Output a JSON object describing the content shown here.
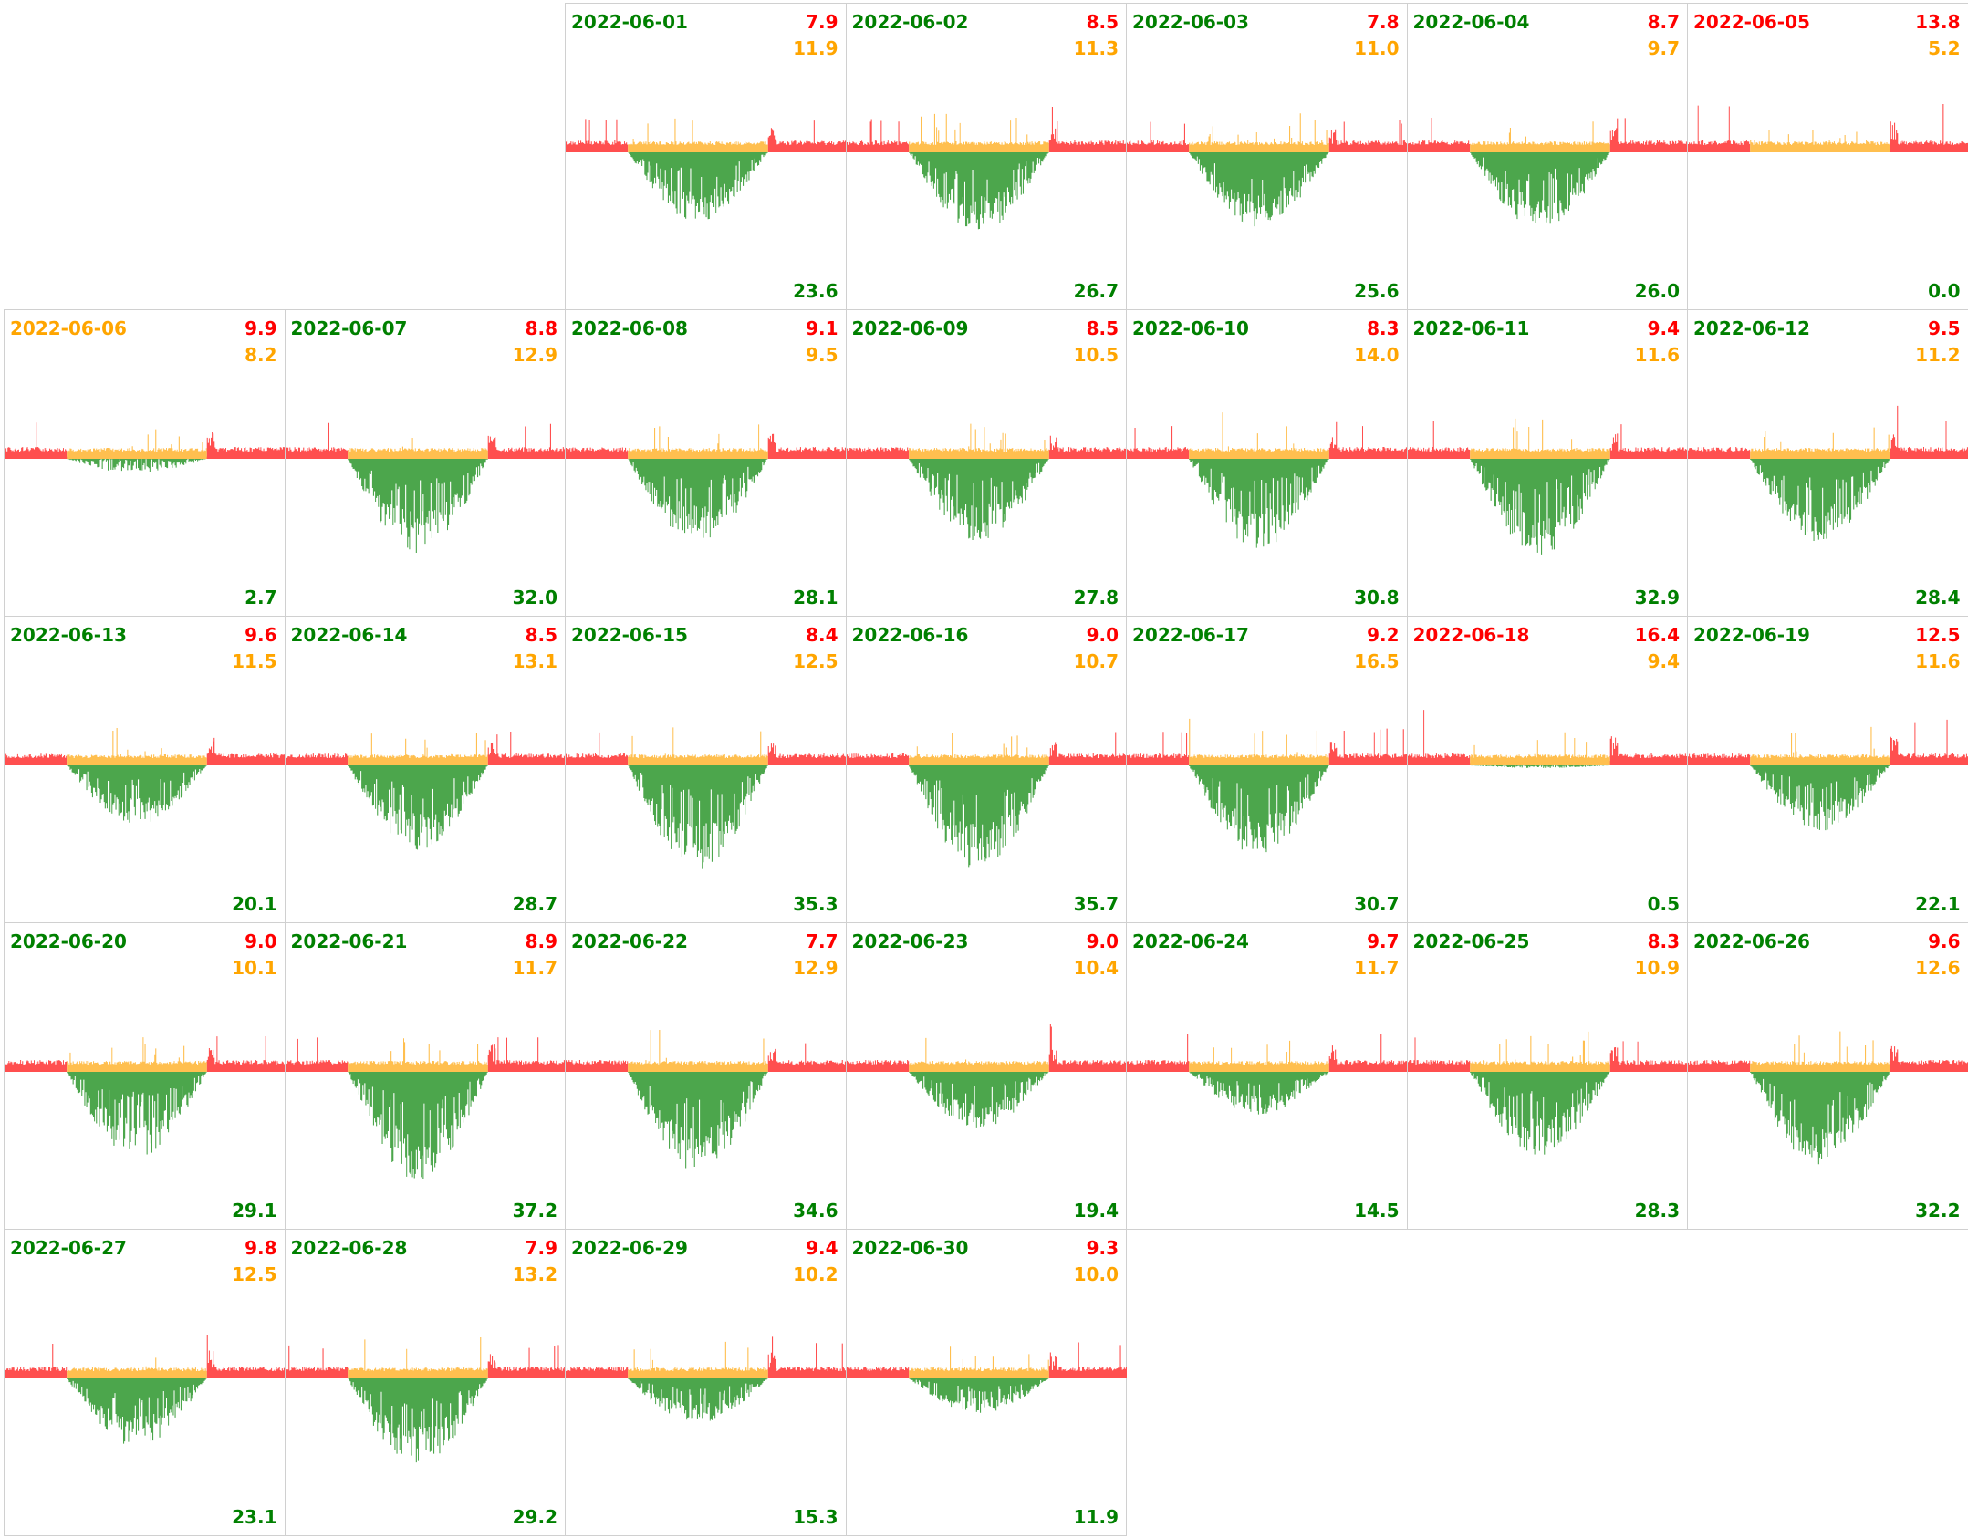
{
  "chart_data": {
    "type": "area",
    "title": "",
    "colors": {
      "consumption": "#ff4f4f",
      "self_use": "#ffbf4f",
      "production": "#4ca64c",
      "ok": "#008000",
      "warn": "#ffa500",
      "bad": "#ff0000"
    },
    "start_column": 2,
    "days": [
      {
        "date": "2022-06-01",
        "status": "ok",
        "red": "7.9",
        "orange": "11.9",
        "green": "23.6"
      },
      {
        "date": "2022-06-02",
        "status": "ok",
        "red": "8.5",
        "orange": "11.3",
        "green": "26.7"
      },
      {
        "date": "2022-06-03",
        "status": "ok",
        "red": "7.8",
        "orange": "11.0",
        "green": "25.6"
      },
      {
        "date": "2022-06-04",
        "status": "ok",
        "red": "8.7",
        "orange": "9.7",
        "green": "26.0"
      },
      {
        "date": "2022-06-05",
        "status": "bad",
        "red": "13.8",
        "orange": "5.2",
        "green": "0.0"
      },
      {
        "date": "2022-06-06",
        "status": "warn",
        "red": "9.9",
        "orange": "8.2",
        "green": "2.7"
      },
      {
        "date": "2022-06-07",
        "status": "ok",
        "red": "8.8",
        "orange": "12.9",
        "green": "32.0"
      },
      {
        "date": "2022-06-08",
        "status": "ok",
        "red": "9.1",
        "orange": "9.5",
        "green": "28.1"
      },
      {
        "date": "2022-06-09",
        "status": "ok",
        "red": "8.5",
        "orange": "10.5",
        "green": "27.8"
      },
      {
        "date": "2022-06-10",
        "status": "ok",
        "red": "8.3",
        "orange": "14.0",
        "green": "30.8"
      },
      {
        "date": "2022-06-11",
        "status": "ok",
        "red": "9.4",
        "orange": "11.6",
        "green": "32.9"
      },
      {
        "date": "2022-06-12",
        "status": "ok",
        "red": "9.5",
        "orange": "11.2",
        "green": "28.4"
      },
      {
        "date": "2022-06-13",
        "status": "ok",
        "red": "9.6",
        "orange": "11.5",
        "green": "20.1"
      },
      {
        "date": "2022-06-14",
        "status": "ok",
        "red": "8.5",
        "orange": "13.1",
        "green": "28.7"
      },
      {
        "date": "2022-06-15",
        "status": "ok",
        "red": "8.4",
        "orange": "12.5",
        "green": "35.3"
      },
      {
        "date": "2022-06-16",
        "status": "ok",
        "red": "9.0",
        "orange": "10.7",
        "green": "35.7"
      },
      {
        "date": "2022-06-17",
        "status": "ok",
        "red": "9.2",
        "orange": "16.5",
        "green": "30.7"
      },
      {
        "date": "2022-06-18",
        "status": "bad",
        "red": "16.4",
        "orange": "9.4",
        "green": "0.5"
      },
      {
        "date": "2022-06-19",
        "status": "ok",
        "red": "12.5",
        "orange": "11.6",
        "green": "22.1"
      },
      {
        "date": "2022-06-20",
        "status": "ok",
        "red": "9.0",
        "orange": "10.1",
        "green": "29.1"
      },
      {
        "date": "2022-06-21",
        "status": "ok",
        "red": "8.9",
        "orange": "11.7",
        "green": "37.2"
      },
      {
        "date": "2022-06-22",
        "status": "ok",
        "red": "7.7",
        "orange": "12.9",
        "green": "34.6"
      },
      {
        "date": "2022-06-23",
        "status": "ok",
        "red": "9.0",
        "orange": "10.4",
        "green": "19.4"
      },
      {
        "date": "2022-06-24",
        "status": "ok",
        "red": "9.7",
        "orange": "11.7",
        "green": "14.5"
      },
      {
        "date": "2022-06-25",
        "status": "ok",
        "red": "8.3",
        "orange": "10.9",
        "green": "28.3"
      },
      {
        "date": "2022-06-26",
        "status": "ok",
        "red": "9.6",
        "orange": "12.6",
        "green": "32.2"
      },
      {
        "date": "2022-06-27",
        "status": "ok",
        "red": "9.8",
        "orange": "12.5",
        "green": "23.1"
      },
      {
        "date": "2022-06-28",
        "status": "ok",
        "red": "7.9",
        "orange": "13.2",
        "green": "29.2"
      },
      {
        "date": "2022-06-29",
        "status": "ok",
        "red": "9.4",
        "orange": "10.2",
        "green": "15.3"
      },
      {
        "date": "2022-06-30",
        "status": "ok",
        "red": "9.3",
        "orange": "10.0",
        "green": "11.9"
      }
    ]
  }
}
